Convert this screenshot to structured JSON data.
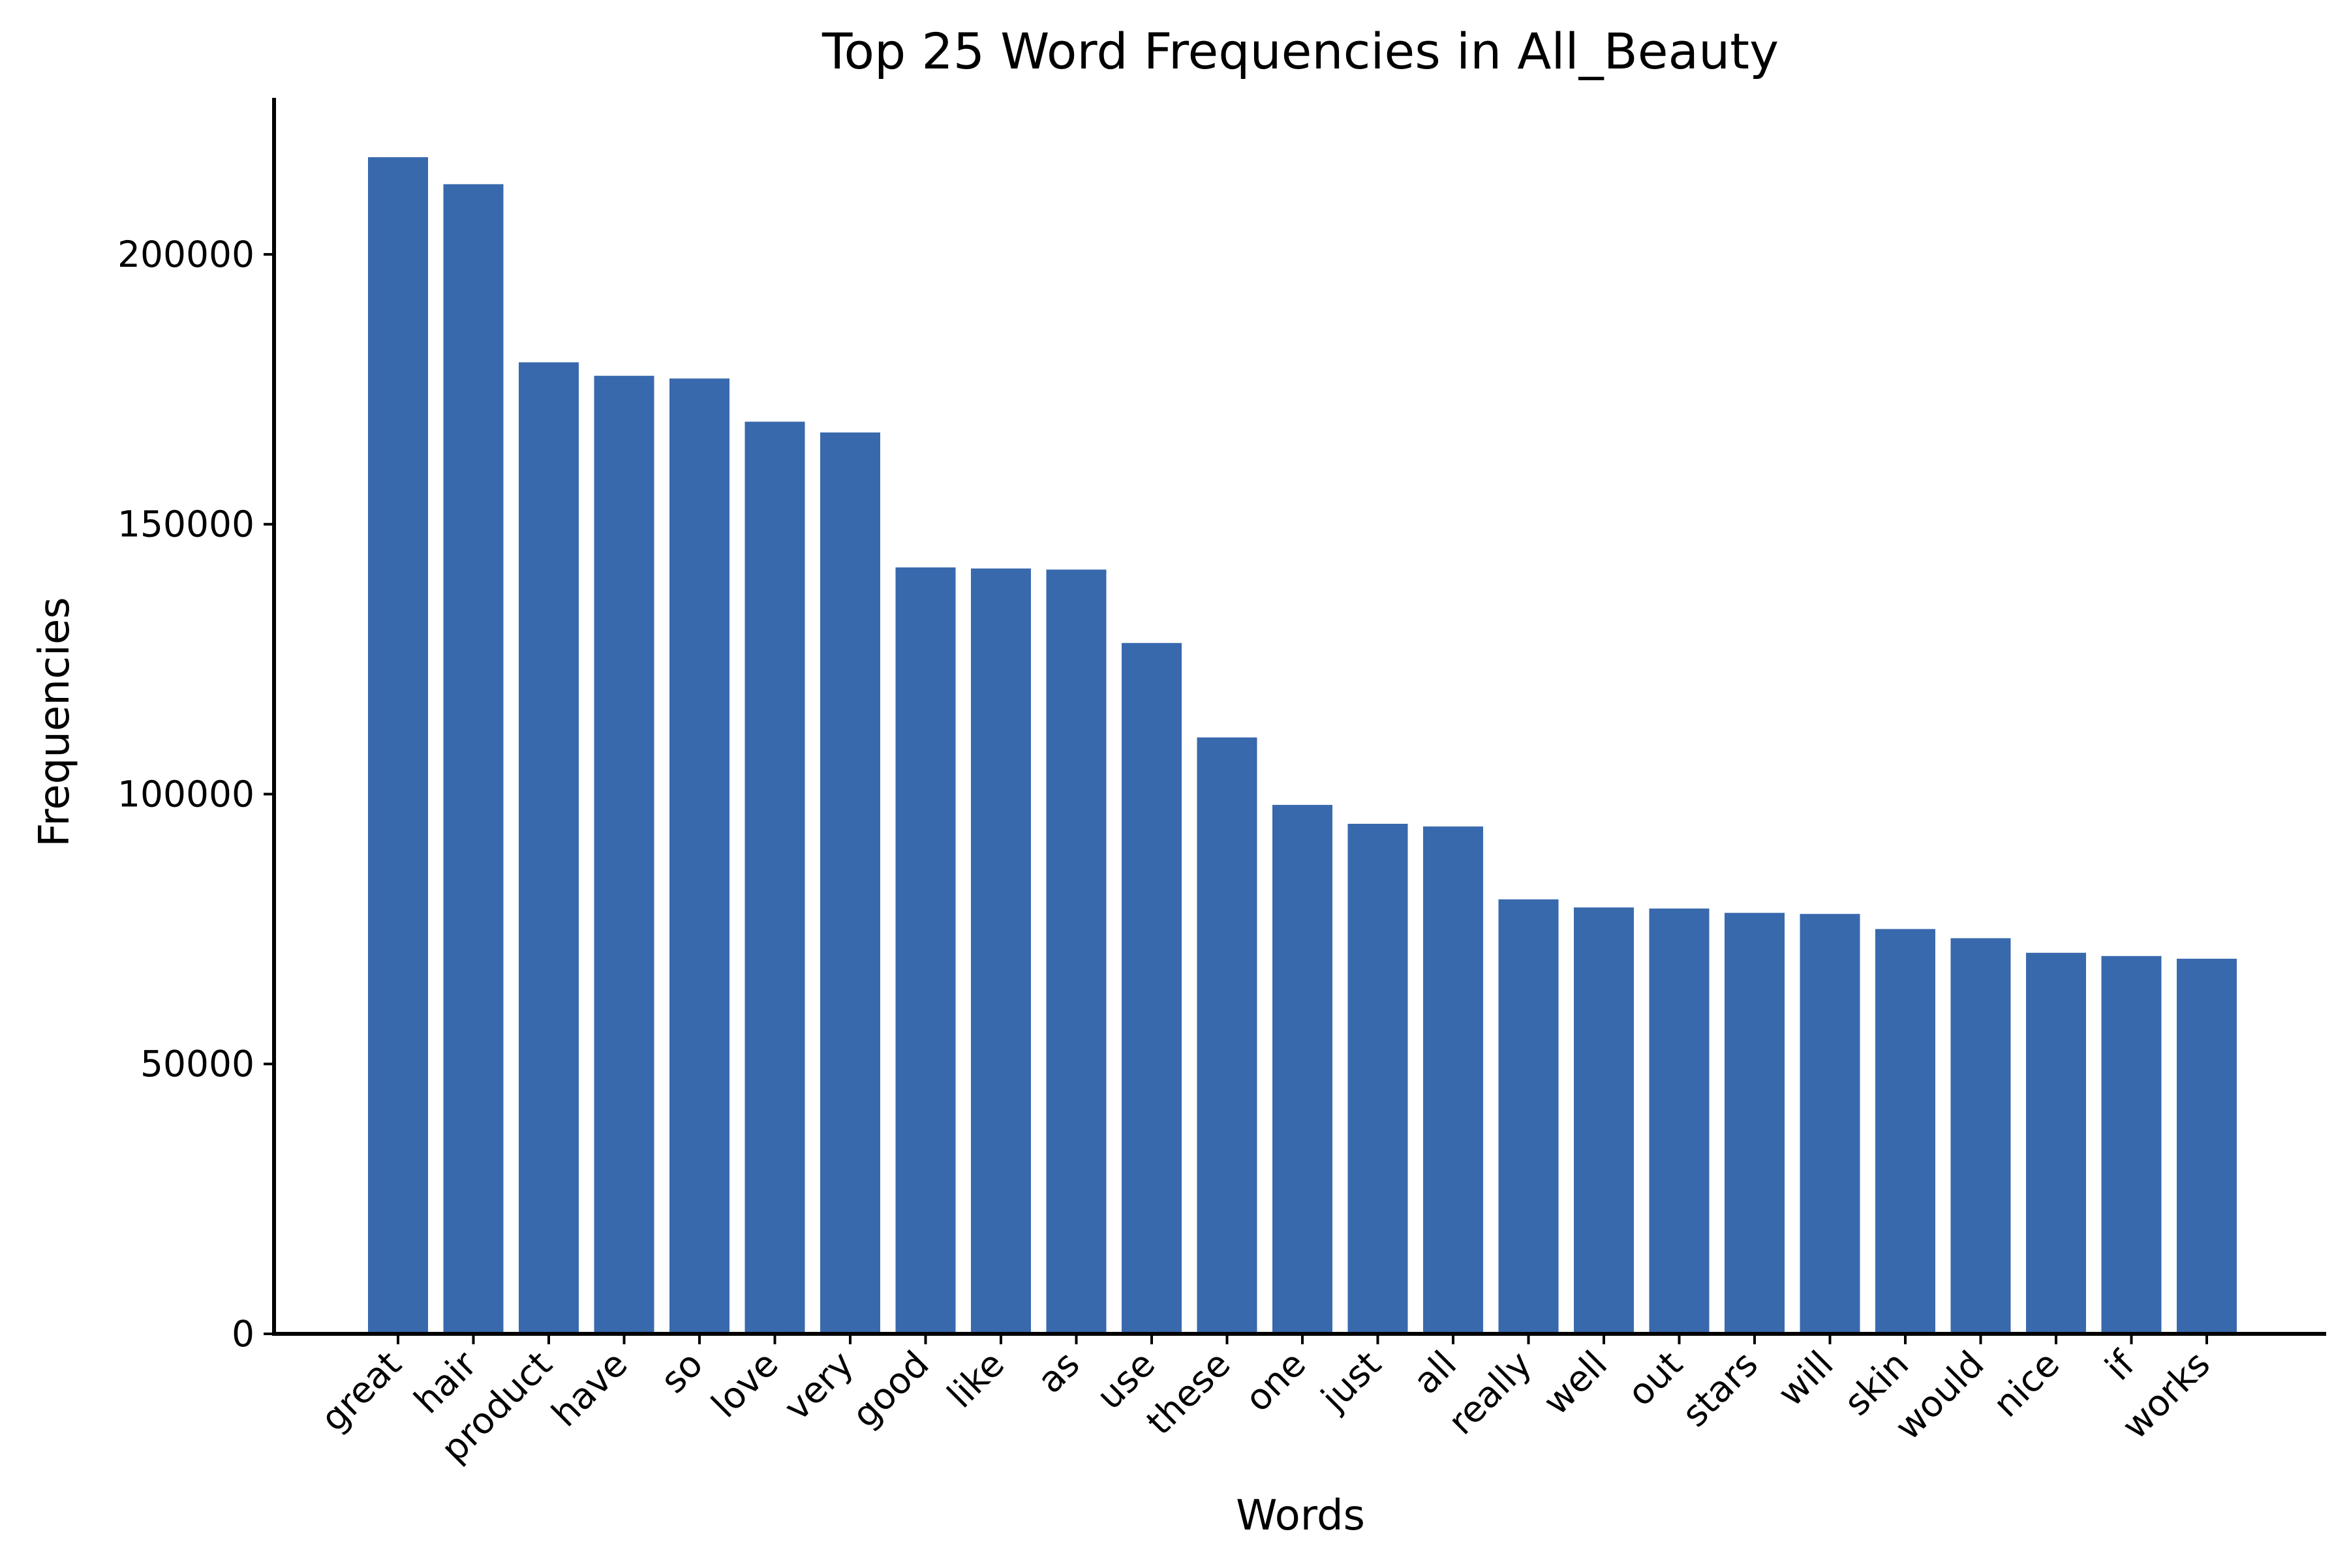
{
  "chart_data": {
    "type": "bar",
    "title": "Top 25 Word Frequencies in All_Beauty",
    "xlabel": "Words",
    "ylabel": "Frequencies",
    "categories": [
      "great",
      "hair",
      "product",
      "have",
      "so",
      "love",
      "very",
      "good",
      "like",
      "as",
      "use",
      "these",
      "one",
      "just",
      "all",
      "really",
      "well",
      "out",
      "stars",
      "will",
      "skin",
      "would",
      "nice",
      "if",
      "works"
    ],
    "values": [
      218000,
      213000,
      180000,
      177500,
      177000,
      169000,
      167000,
      142000,
      141800,
      141600,
      128000,
      110500,
      98000,
      94500,
      94000,
      80500,
      79000,
      78800,
      78000,
      77800,
      75000,
      73300,
      70600,
      70000,
      69500
    ],
    "yticks": [
      0,
      50000,
      100000,
      150000,
      200000
    ],
    "ylim": [
      0,
      229000
    ],
    "bar_color": "#3869ad",
    "grid": false,
    "legend": "none"
  }
}
